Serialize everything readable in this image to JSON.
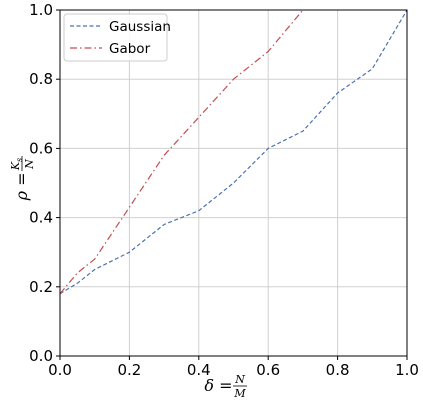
{
  "chart_data": {
    "type": "line",
    "xlabel": "δ = N/M",
    "xlabel_parts": {
      "symbol": "δ",
      "eq": " = ",
      "num": "N",
      "den": "M"
    },
    "ylabel": "ρ = K_s/N",
    "ylabel_parts": {
      "symbol": "ρ",
      "eq": " = ",
      "num": "K",
      "num_sub": "s",
      "den": "N"
    },
    "xlim": [
      0.0,
      1.0
    ],
    "ylim": [
      0.0,
      1.0
    ],
    "xticks": [
      "0.0",
      "0.2",
      "0.4",
      "0.6",
      "0.8",
      "1.0"
    ],
    "yticks": [
      "0.0",
      "0.2",
      "0.4",
      "0.6",
      "0.8",
      "1.0"
    ],
    "grid": true,
    "legend": "top-left",
    "series": [
      {
        "name": "Gaussian",
        "color": "#4c72b0",
        "style": "dashed",
        "x": [
          0.0,
          0.05,
          0.1,
          0.2,
          0.3,
          0.4,
          0.5,
          0.6,
          0.7,
          0.8,
          0.9,
          1.0
        ],
        "y": [
          0.18,
          0.21,
          0.25,
          0.3,
          0.38,
          0.42,
          0.5,
          0.6,
          0.65,
          0.76,
          0.83,
          1.0
        ]
      },
      {
        "name": "Gabor",
        "color": "#c44e52",
        "style": "dashdot",
        "x": [
          0.0,
          0.05,
          0.1,
          0.2,
          0.3,
          0.4,
          0.5,
          0.6,
          0.7
        ],
        "y": [
          0.18,
          0.24,
          0.28,
          0.43,
          0.58,
          0.69,
          0.8,
          0.88,
          1.0
        ]
      }
    ]
  }
}
